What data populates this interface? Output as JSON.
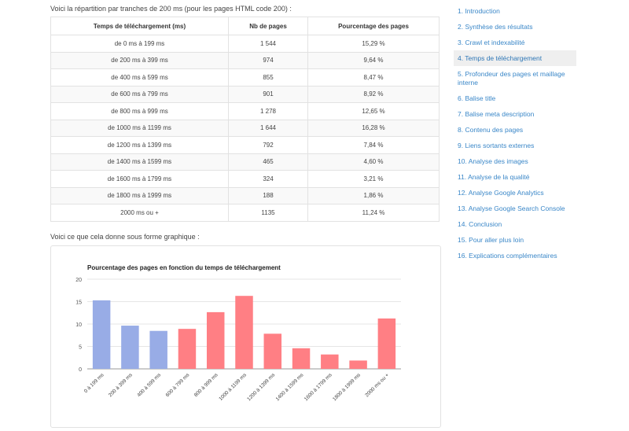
{
  "intro_text": "Voici la répartition par tranches de 200 ms (pour les pages HTML code 200) :",
  "table": {
    "headers": [
      "Temps de téléchargement (ms)",
      "Nb de pages",
      "Pourcentage des pages"
    ],
    "rows": [
      [
        "de 0 ms à 199 ms",
        "1 544",
        "15,29 %"
      ],
      [
        "de 200 ms à 399 ms",
        "974",
        "9,64 %"
      ],
      [
        "de 400 ms à 599 ms",
        "855",
        "8,47 %"
      ],
      [
        "de 600 ms à 799 ms",
        "901",
        "8,92 %"
      ],
      [
        "de 800 ms à 999 ms",
        "1 278",
        "12,65 %"
      ],
      [
        "de 1000 ms à 1199 ms",
        "1 644",
        "16,28 %"
      ],
      [
        "de 1200 ms à 1399 ms",
        "792",
        "7,84 %"
      ],
      [
        "de 1400 ms à 1599 ms",
        "465",
        "4,60 %"
      ],
      [
        "de 1600 ms à 1799 ms",
        "324",
        "3,21 %"
      ],
      [
        "de 1800 ms à 1999 ms",
        "188",
        "1,86 %"
      ],
      [
        "2000 ms ou +",
        "1135",
        "11,24 %"
      ]
    ]
  },
  "chart_intro": "Voici ce que cela donne sous forme graphique :",
  "chart_data": {
    "type": "bar",
    "title": "Pourcentage des pages en fonction du temps de téléchargement",
    "categories": [
      "0 à 199 ms",
      "200 à 399 ms",
      "400 à 599 ms",
      "600 à 799 ms",
      "800 à 999 ms",
      "1000 à 1199 ms",
      "1200 à 1399 ms",
      "1400 à 1599 ms",
      "1600 à 1799 ms",
      "1800 à 1999 ms",
      "2000 ms ou +"
    ],
    "values": [
      15.29,
      9.64,
      8.47,
      8.92,
      12.65,
      16.28,
      7.84,
      4.6,
      3.21,
      1.86,
      11.24
    ],
    "bar_colors": [
      "#98ace6",
      "#98ace6",
      "#98ace6",
      "#ff7f84",
      "#ff7f84",
      "#ff7f84",
      "#ff7f84",
      "#ff7f84",
      "#ff7f84",
      "#ff7f84",
      "#ff7f84"
    ],
    "yticks": [
      "0",
      "5",
      "10",
      "15",
      "20"
    ],
    "ylim": [
      0,
      20
    ],
    "xlabel": "",
    "ylabel": "",
    "grid": true
  },
  "toc": {
    "active_index": 3,
    "items": [
      "1. Introduction",
      "2. Synthèse des résultats",
      "3. Crawl et indexabilité",
      "4. Temps de téléchargement",
      "5. Profondeur des pages et maillage interne",
      "6. Balise title",
      "7. Balise meta description",
      "8. Contenu des pages",
      "9. Liens sortants externes",
      "10. Analyse des images",
      "11. Analyse de la qualité",
      "12. Analyse Google Analytics",
      "13. Analyse Google Search Console",
      "14. Conclusion",
      "15. Pour aller plus loin",
      "16. Explications complémentaires"
    ],
    "link_color": "#3a87c8",
    "active_bg": "#efefef"
  }
}
